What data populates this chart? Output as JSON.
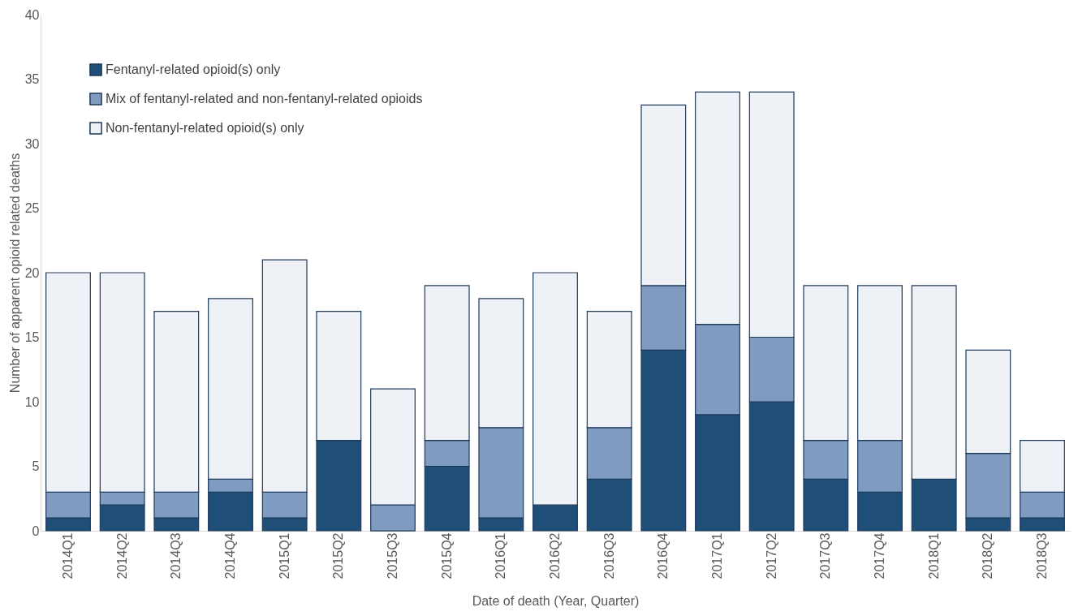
{
  "chart_data": {
    "type": "bar",
    "stacked": true,
    "xlabel": "Date of death (Year, Quarter)",
    "ylabel": "Number of apparent opioid related deaths",
    "categories": [
      "2014Q1",
      "2014Q2",
      "2014Q3",
      "2014Q4",
      "2015Q1",
      "2015Q2",
      "2015Q3",
      "2015Q4",
      "2016Q1",
      "2016Q2",
      "2016Q3",
      "2016Q4",
      "2017Q1",
      "2017Q2",
      "2017Q3",
      "2017Q4",
      "2018Q1",
      "2018Q2",
      "2018Q3"
    ],
    "series": [
      {
        "name": "Fentanyl-related opioid(s) only",
        "color": "#1f4e79",
        "values": [
          1,
          2,
          1,
          3,
          1,
          7,
          0,
          5,
          1,
          2,
          4,
          14,
          9,
          10,
          4,
          3,
          4,
          1,
          1
        ]
      },
      {
        "name": "Mix of fentanyl-related and non-fentanyl-related opioids",
        "color": "#7f9cc0",
        "values": [
          2,
          1,
          2,
          1,
          2,
          0,
          2,
          2,
          7,
          0,
          4,
          5,
          7,
          5,
          3,
          4,
          0,
          5,
          2
        ]
      },
      {
        "name": "Non-fentanyl-related opioid(s) only",
        "color": "#eef2f7",
        "values": [
          17,
          17,
          14,
          14,
          18,
          10,
          9,
          12,
          10,
          18,
          9,
          14,
          18,
          19,
          12,
          12,
          15,
          8,
          4
        ]
      }
    ],
    "ylim": [
      0,
      40
    ],
    "yticks": [
      0,
      5,
      10,
      15,
      20,
      25,
      30,
      35,
      40
    ],
    "grid": false,
    "legend": "top left"
  }
}
